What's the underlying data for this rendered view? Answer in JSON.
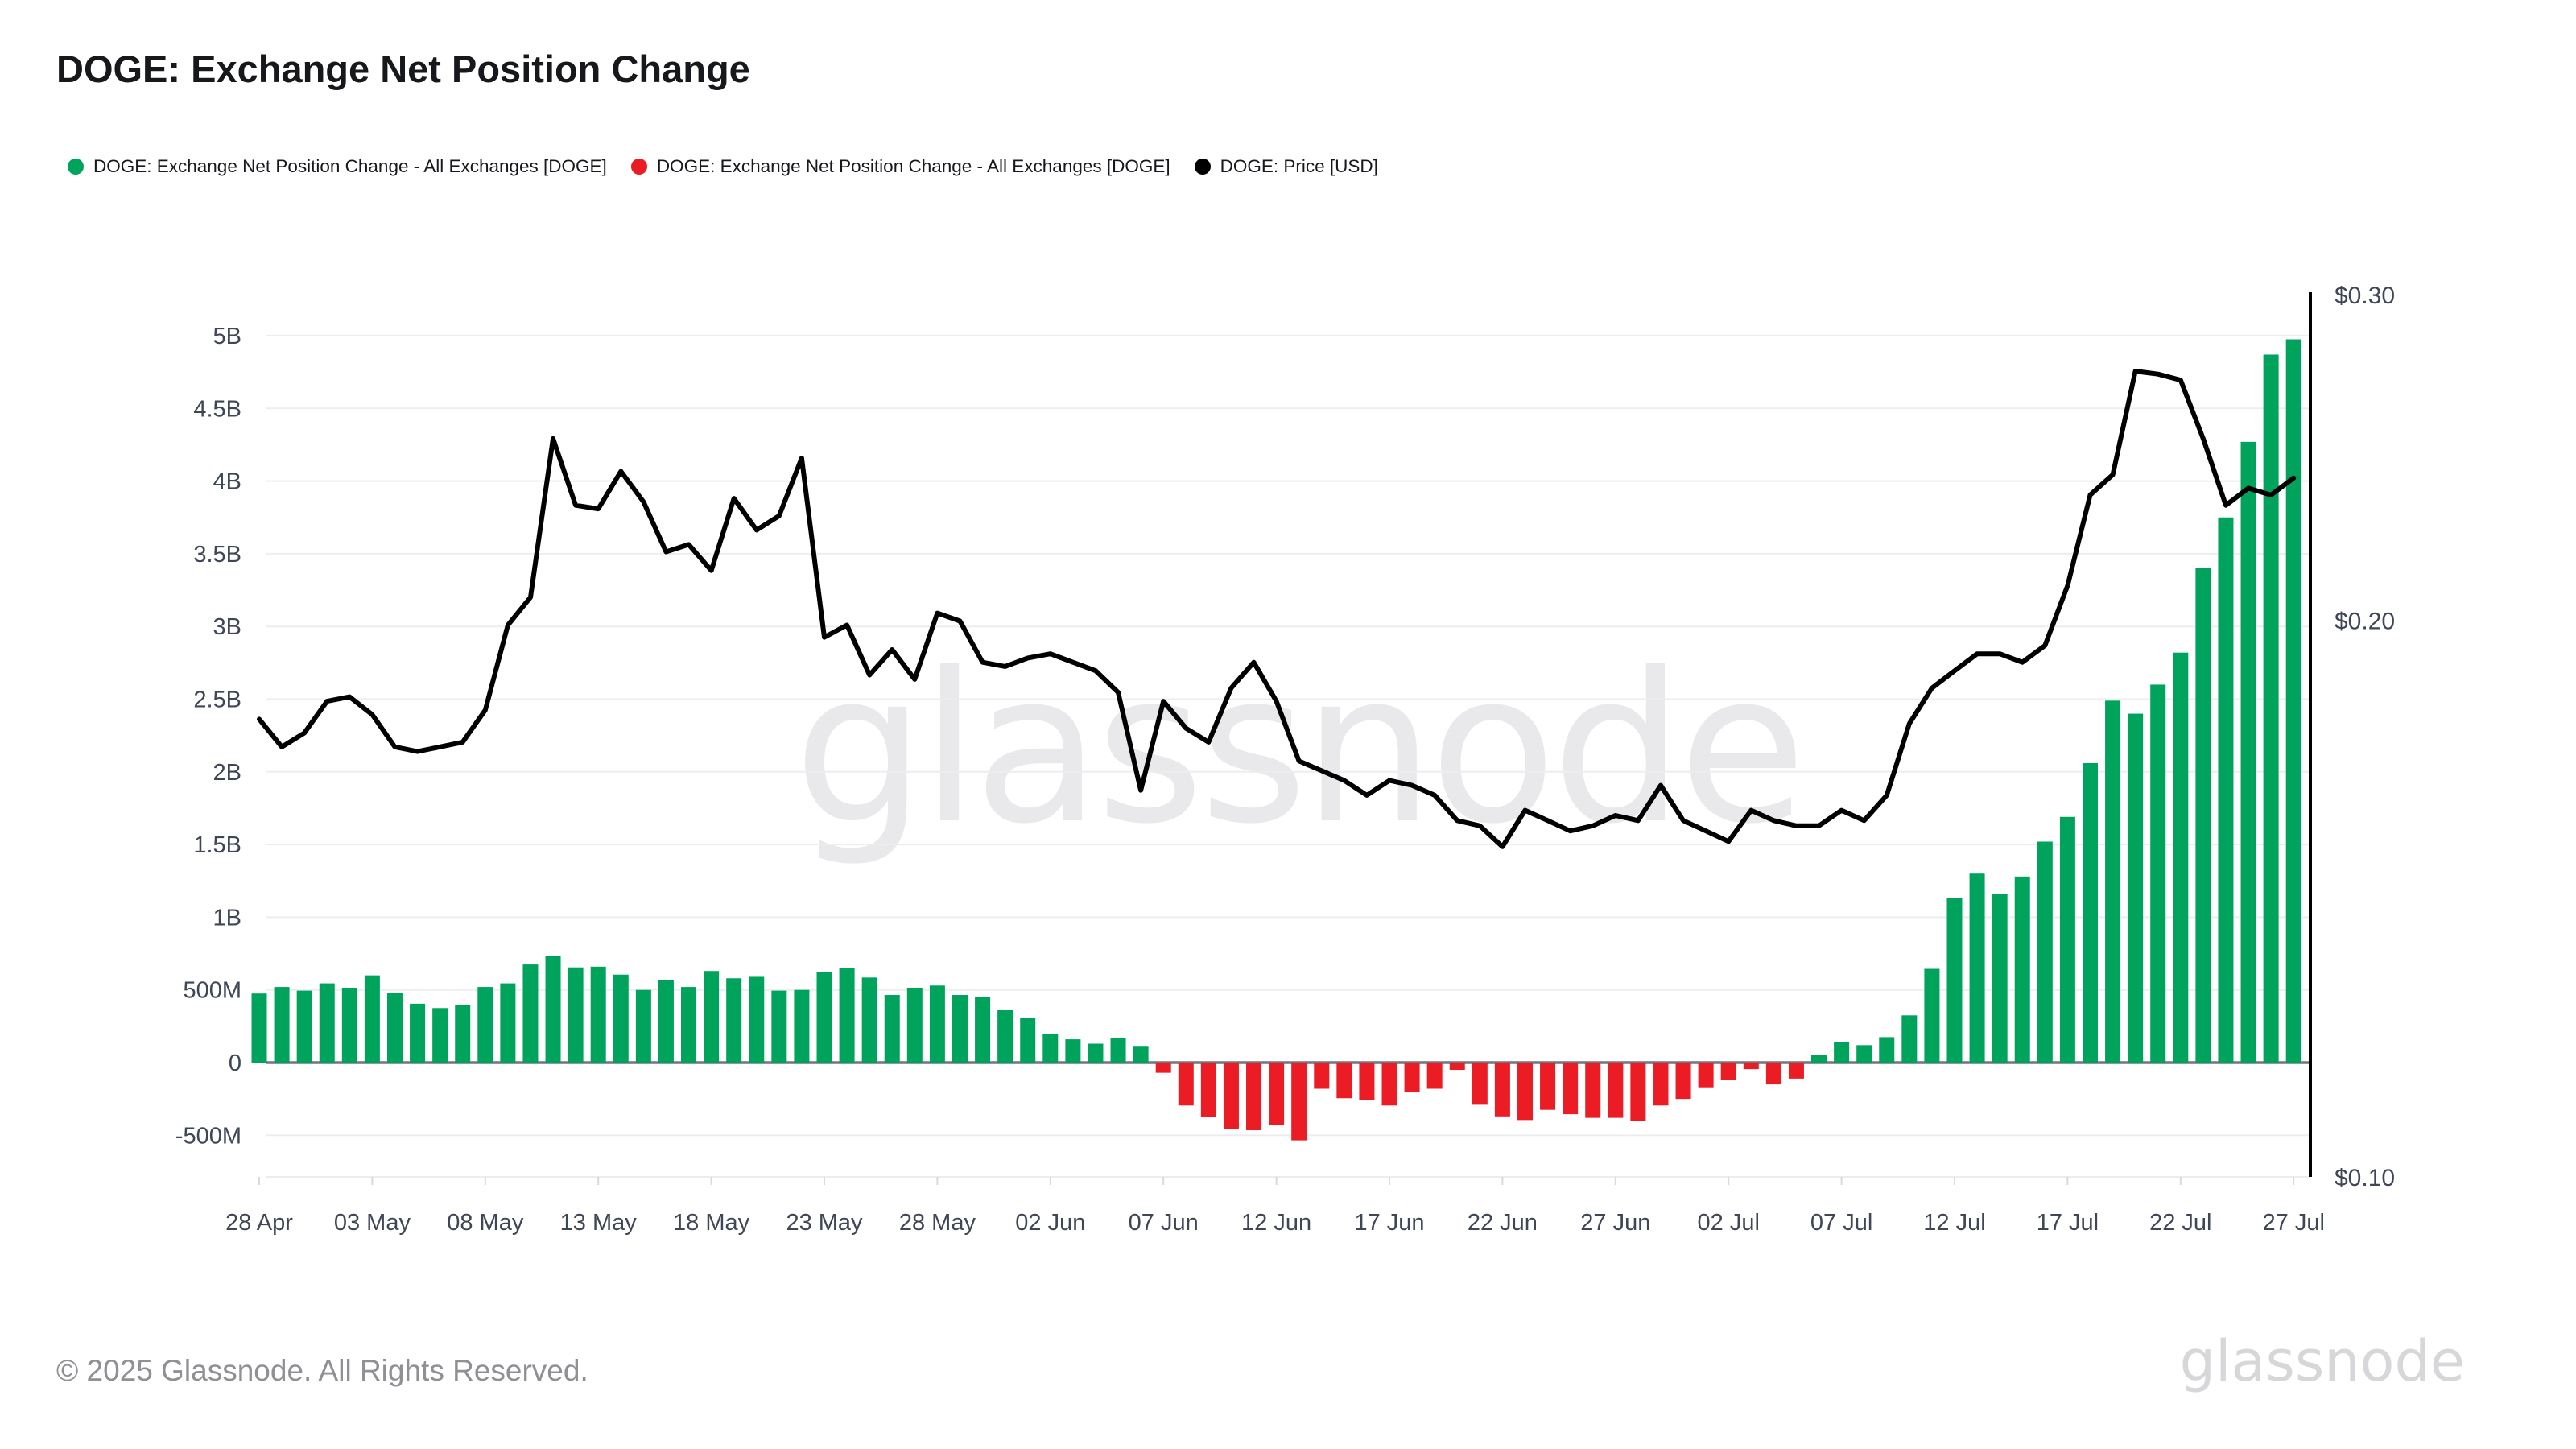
{
  "header": {
    "title": "DOGE: Exchange Net Position Change"
  },
  "legend": {
    "items": [
      {
        "label": "DOGE: Exchange Net Position Change - All Exchanges [DOGE]",
        "color": "#00A35C",
        "icon": "green-dot"
      },
      {
        "label": "DOGE: Exchange Net Position Change - All Exchanges [DOGE]",
        "color": "#EC1C24",
        "icon": "red-dot"
      },
      {
        "label": "DOGE: Price [USD]",
        "color": "#000000",
        "icon": "black-dot"
      }
    ]
  },
  "watermark": {
    "text": "glassnode"
  },
  "footer": {
    "copyright": "© 2025 Glassnode. All Rights Reserved.",
    "brand": "glassnode"
  },
  "chart_data": {
    "type": "bar+line combo",
    "title": "DOGE: Exchange Net Position Change",
    "x_tick_labels": [
      "28 Apr",
      "03 May",
      "08 May",
      "13 May",
      "18 May",
      "23 May",
      "28 May",
      "02 Jun",
      "07 Jun",
      "12 Jun",
      "17 Jun",
      "22 Jun",
      "27 Jun",
      "02 Jul",
      "07 Jul",
      "12 Jul",
      "17 Jul",
      "22 Jul",
      "27 Jul"
    ],
    "x_tick_day_indices": [
      0,
      5,
      10,
      15,
      20,
      25,
      30,
      35,
      40,
      45,
      50,
      55,
      60,
      65,
      70,
      75,
      80,
      85,
      90
    ],
    "y_left": {
      "tick_labels": [
        "5B",
        "4.5B",
        "4B",
        "3.5B",
        "3B",
        "2.5B",
        "2B",
        "1.5B",
        "1B",
        "500M",
        "0",
        "-500M"
      ],
      "tick_values_millions": [
        5000,
        4500,
        4000,
        3500,
        3000,
        2500,
        2000,
        1500,
        1000,
        500,
        0,
        -500
      ],
      "ylim_millions": [
        -780,
        5270
      ],
      "scale": "linear",
      "grid": true
    },
    "y_right": {
      "tick_labels": [
        "$0.30",
        "$0.20",
        "$0.10"
      ],
      "tick_values_usd": [
        0.3,
        0.2,
        0.1
      ],
      "scale": "log",
      "grid": false
    },
    "dates": [
      "28 Apr",
      "29 Apr",
      "30 Apr",
      "01 May",
      "02 May",
      "03 May",
      "04 May",
      "05 May",
      "06 May",
      "07 May",
      "08 May",
      "09 May",
      "10 May",
      "11 May",
      "12 May",
      "13 May",
      "14 May",
      "15 May",
      "16 May",
      "17 May",
      "18 May",
      "19 May",
      "20 May",
      "21 May",
      "22 May",
      "23 May",
      "24 May",
      "25 May",
      "26 May",
      "27 May",
      "28 May",
      "29 May",
      "30 May",
      "31 May",
      "01 Jun",
      "02 Jun",
      "03 Jun",
      "04 Jun",
      "05 Jun",
      "06 Jun",
      "07 Jun",
      "08 Jun",
      "09 Jun",
      "10 Jun",
      "11 Jun",
      "12 Jun",
      "13 Jun",
      "14 Jun",
      "15 Jun",
      "16 Jun",
      "17 Jun",
      "18 Jun",
      "19 Jun",
      "20 Jun",
      "21 Jun",
      "22 Jun",
      "23 Jun",
      "24 Jun",
      "25 Jun",
      "26 Jun",
      "27 Jun",
      "28 Jun",
      "29 Jun",
      "30 Jun",
      "01 Jul",
      "02 Jul",
      "03 Jul",
      "04 Jul",
      "05 Jul",
      "06 Jul",
      "07 Jul",
      "08 Jul",
      "09 Jul",
      "10 Jul",
      "11 Jul",
      "12 Jul",
      "13 Jul",
      "14 Jul",
      "15 Jul",
      "16 Jul",
      "17 Jul",
      "18 Jul",
      "19 Jul",
      "20 Jul",
      "21 Jul",
      "22 Jul",
      "23 Jul",
      "24 Jul",
      "25 Jul",
      "26 Jul",
      "27 Jul"
    ],
    "series": [
      {
        "name": "DOGE: Exchange Net Position Change - All Exchanges [DOGE]",
        "type": "bar",
        "axis": "left",
        "unit": "DOGE (millions)",
        "positive_color": "#00A35C",
        "negative_color": "#EC1C24",
        "values_millions": [
          475,
          520,
          495,
          545,
          515,
          600,
          480,
          405,
          375,
          395,
          520,
          545,
          675,
          735,
          655,
          660,
          605,
          500,
          570,
          520,
          630,
          580,
          590,
          495,
          500,
          625,
          650,
          585,
          465,
          515,
          530,
          465,
          450,
          360,
          305,
          195,
          160,
          130,
          170,
          115,
          -70,
          -295,
          -375,
          -455,
          -465,
          -430,
          -535,
          -180,
          -245,
          -255,
          -295,
          -205,
          -180,
          -50,
          -290,
          -370,
          -395,
          -325,
          -355,
          -380,
          -380,
          -400,
          -295,
          -250,
          -170,
          -120,
          -45,
          -150,
          -110,
          55,
          140,
          120,
          175,
          325,
          645,
          1135,
          1300,
          1160,
          1280,
          1520,
          1690,
          2060,
          2490,
          2400,
          2600,
          2820,
          3400,
          3750,
          4270,
          4870,
          4975
        ]
      },
      {
        "name": "DOGE: Price [USD]",
        "type": "line",
        "axis": "right",
        "color": "#000000",
        "values_usd": [
          0.177,
          0.171,
          0.174,
          0.181,
          0.182,
          0.178,
          0.171,
          0.17,
          0.171,
          0.172,
          0.179,
          0.199,
          0.206,
          0.251,
          0.231,
          0.23,
          0.241,
          0.232,
          0.218,
          0.22,
          0.213,
          0.233,
          0.224,
          0.228,
          0.245,
          0.196,
          0.199,
          0.187,
          0.193,
          0.186,
          0.202,
          0.2,
          0.19,
          0.189,
          0.191,
          0.192,
          0.19,
          0.188,
          0.183,
          0.162,
          0.181,
          0.175,
          0.172,
          0.184,
          0.19,
          0.181,
          0.168,
          0.166,
          0.164,
          0.161,
          0.164,
          0.163,
          0.161,
          0.156,
          0.155,
          0.151,
          0.158,
          0.156,
          0.154,
          0.155,
          0.157,
          0.156,
          0.163,
          0.156,
          0.154,
          0.152,
          0.158,
          0.156,
          0.155,
          0.155,
          0.158,
          0.156,
          0.161,
          0.176,
          0.184,
          0.188,
          0.192,
          0.192,
          0.19,
          0.194,
          0.209,
          0.234,
          0.24,
          0.273,
          0.272,
          0.27,
          0.251,
          0.231,
          0.236,
          0.234,
          0.239
        ]
      }
    ],
    "legend_position": "top-left",
    "watermark": "glassnode"
  }
}
